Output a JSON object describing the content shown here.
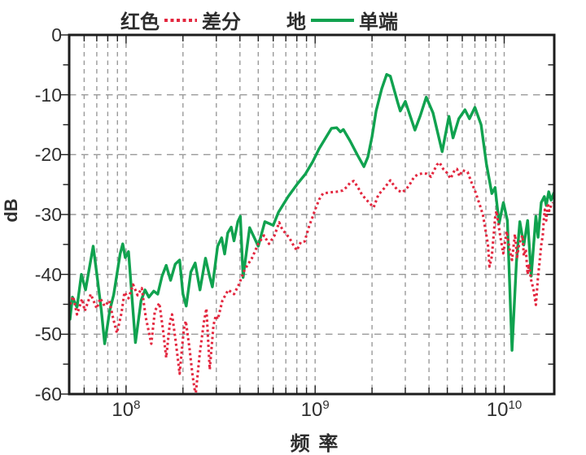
{
  "chart_data": {
    "type": "line",
    "title": "",
    "xlabel": "频 率",
    "ylabel": "dB",
    "x_scale": "log",
    "x_range_hz": [
      50000000.0,
      18400000000.0
    ],
    "ylim": [
      -60,
      0
    ],
    "y_ticks": [
      0,
      -10,
      -20,
      -30,
      -40,
      -50,
      -60
    ],
    "y_minor_tick_step_db": 5,
    "x_major_ticks_hz": [
      100000000.0,
      1000000000.0,
      10000000000.0
    ],
    "x_tick_labels": [
      {
        "base": "10",
        "exp": "8"
      },
      {
        "base": "10",
        "exp": "9"
      },
      {
        "base": "10",
        "exp": "10"
      }
    ],
    "grid": "dashed gray grid, horizontal every 10 dB, vertical at log-decade minors",
    "legend_position": "top-center",
    "legend": [
      {
        "prefix": "红色",
        "name": "差分",
        "style": "dotted",
        "color": "#E3273F"
      },
      {
        "prefix": "地",
        "name": "单端",
        "style": "solid",
        "color": "#10A24F"
      }
    ],
    "colors": {
      "grid": "#9a9a9a",
      "axis": "#1c1c1c",
      "text": "#2d2d2d",
      "red_series": "#E3273F",
      "green_series": "#10A24F"
    },
    "series": [
      {
        "id": "single-ended",
        "name": "单端",
        "style": "solid",
        "color": "#10A24F",
        "points_hz_db": [
          [
            50500000.0,
            -47.5
          ],
          [
            52000000.0,
            -43.8
          ],
          [
            55000000.0,
            -45.5
          ],
          [
            58000000.0,
            -40.0
          ],
          [
            61000000.0,
            -42.6
          ],
          [
            67000000.0,
            -35.3
          ],
          [
            70000000.0,
            -39.9
          ],
          [
            74000000.0,
            -46.0
          ],
          [
            77000000.0,
            -51.6
          ],
          [
            82000000.0,
            -46.0
          ],
          [
            86000000.0,
            -43.4
          ],
          [
            93000000.0,
            -36.6
          ],
          [
            96000000.0,
            -34.9
          ],
          [
            99000000.0,
            -37.2
          ],
          [
            103000000.0,
            -36.2
          ],
          [
            107000000.0,
            -43.0
          ],
          [
            112000000.0,
            -51.4
          ],
          [
            120000000.0,
            -44.4
          ],
          [
            126000000.0,
            -42.6
          ],
          [
            132000000.0,
            -43.8
          ],
          [
            140000000.0,
            -42.8
          ],
          [
            147000000.0,
            -43.3
          ],
          [
            155000000.0,
            -40.3
          ],
          [
            163000000.0,
            -38.5
          ],
          [
            172000000.0,
            -41.0
          ],
          [
            182000000.0,
            -38.3
          ],
          [
            192000000.0,
            -37.6
          ],
          [
            200000000.0,
            -43.3
          ],
          [
            208000000.0,
            -45.3
          ],
          [
            220000000.0,
            -39.6
          ],
          [
            232000000.0,
            -38.1
          ],
          [
            246000000.0,
            -42.6
          ],
          [
            263000000.0,
            -37.3
          ],
          [
            276000000.0,
            -40.2
          ],
          [
            286000000.0,
            -42.1
          ],
          [
            305000000.0,
            -35.3
          ],
          [
            320000000.0,
            -33.9
          ],
          [
            332000000.0,
            -36.6
          ],
          [
            345000000.0,
            -33.1
          ],
          [
            360000000.0,
            -32.1
          ],
          [
            372000000.0,
            -34.4
          ],
          [
            390000000.0,
            -31.2
          ],
          [
            402000000.0,
            -30.3
          ],
          [
            416000000.0,
            -40.5
          ],
          [
            450000000.0,
            -32.2
          ],
          [
            500000000.0,
            -35.3
          ],
          [
            542000000.0,
            -31.2
          ],
          [
            600000000.0,
            -31.8
          ],
          [
            640000000.0,
            -29.6
          ],
          [
            720000000.0,
            -27.0
          ],
          [
            800000000.0,
            -25.0
          ],
          [
            890000000.0,
            -23.2
          ],
          [
            970000000.0,
            -21.2
          ],
          [
            1050000000.0,
            -19.0
          ],
          [
            1220000000.0,
            -15.6
          ],
          [
            1300000000.0,
            -15.5
          ],
          [
            1360000000.0,
            -16.2
          ],
          [
            1410000000.0,
            -15.8
          ],
          [
            1530000000.0,
            -17.7
          ],
          [
            1670000000.0,
            -20.0
          ],
          [
            1810000000.0,
            -22.0
          ],
          [
            1900000000.0,
            -20.4
          ],
          [
            2000000000.0,
            -17.0
          ],
          [
            2100000000.0,
            -12.7
          ],
          [
            2250000000.0,
            -9.0
          ],
          [
            2390000000.0,
            -6.6
          ],
          [
            2500000000.0,
            -6.9
          ],
          [
            2740000000.0,
            -11.4
          ],
          [
            2820000000.0,
            -12.7
          ],
          [
            3000000000.0,
            -11.1
          ],
          [
            3370000000.0,
            -15.9
          ],
          [
            3600000000.0,
            -13.5
          ],
          [
            3870000000.0,
            -10.4
          ],
          [
            4200000000.0,
            -13.0
          ],
          [
            4700000000.0,
            -19.5
          ],
          [
            5100000000.0,
            -13.6
          ],
          [
            5360000000.0,
            -17.2
          ],
          [
            5750000000.0,
            -14.0
          ],
          [
            6200000000.0,
            -12.5
          ],
          [
            6550000000.0,
            -14.0
          ],
          [
            7000000000.0,
            -12.1
          ],
          [
            7550000000.0,
            -15.0
          ],
          [
            8050000000.0,
            -21.5
          ],
          [
            8600000000.0,
            -26.5
          ],
          [
            8950000000.0,
            -25.5
          ],
          [
            9400000000.0,
            -31.5
          ],
          [
            9900000000.0,
            -28.0
          ],
          [
            10400000000.0,
            -31.0
          ],
          [
            11000000000.0,
            -52.7
          ],
          [
            11600000000.0,
            -38.0
          ],
          [
            12100000000.0,
            -31.2
          ],
          [
            12700000000.0,
            -35.1
          ],
          [
            13300000000.0,
            -31.0
          ],
          [
            13900000000.0,
            -40.3
          ],
          [
            14700000000.0,
            -30.3
          ],
          [
            15100000000.0,
            -33.8
          ],
          [
            15700000000.0,
            -28.0
          ],
          [
            16300000000.0,
            -27.0
          ],
          [
            16700000000.0,
            -28.5
          ],
          [
            17200000000.0,
            -26.2
          ],
          [
            17700000000.0,
            -27.6
          ],
          [
            18300000000.0,
            -26.4
          ]
        ]
      },
      {
        "id": "differential",
        "name": "差分",
        "style": "dotted",
        "color": "#E3273F",
        "points_hz_db": [
          [
            50500000.0,
            -45.0
          ],
          [
            52500000.0,
            -43.7
          ],
          [
            55000000.0,
            -46.7
          ],
          [
            58500000.0,
            -44.1
          ],
          [
            60500000.0,
            -46.1
          ],
          [
            65000000.0,
            -43.3
          ],
          [
            70000000.0,
            -45.7
          ],
          [
            73000000.0,
            -44.0
          ],
          [
            77000000.0,
            -45.3
          ],
          [
            81500000.0,
            -44.4
          ],
          [
            85500000.0,
            -47.4
          ],
          [
            89500000.0,
            -49.8
          ],
          [
            94500000.0,
            -46.5
          ],
          [
            98000000.0,
            -43.0
          ],
          [
            103000000.0,
            -44.0
          ],
          [
            109000000.0,
            -41.7
          ],
          [
            115000000.0,
            -43.5
          ],
          [
            121000000.0,
            -42.3
          ],
          [
            127000000.0,
            -47.1
          ],
          [
            136000000.0,
            -51.6
          ],
          [
            142000000.0,
            -46.1
          ],
          [
            150000000.0,
            -44.8
          ],
          [
            157000000.0,
            -49.4
          ],
          [
            163000000.0,
            -53.9
          ],
          [
            171000000.0,
            -47.8
          ],
          [
            175000000.0,
            -46.7
          ],
          [
            183000000.0,
            -51.2
          ],
          [
            192000000.0,
            -56.6
          ],
          [
            202000000.0,
            -49.1
          ],
          [
            207000000.0,
            -47.8
          ],
          [
            216000000.0,
            -52.1
          ],
          [
            225000000.0,
            -57.0
          ],
          [
            233000000.0,
            -60.2
          ],
          [
            245000000.0,
            -53.4
          ],
          [
            258000000.0,
            -48.0
          ],
          [
            266000000.0,
            -45.7
          ],
          [
            277000000.0,
            -55.9
          ],
          [
            290000000.0,
            -48.5
          ],
          [
            298000000.0,
            -46.9
          ],
          [
            306000000.0,
            -47.5
          ],
          [
            323000000.0,
            -44.4
          ],
          [
            347000000.0,
            -42.6
          ],
          [
            372000000.0,
            -43.3
          ],
          [
            395000000.0,
            -41.7
          ],
          [
            424000000.0,
            -39.2
          ],
          [
            463000000.0,
            -37.3
          ],
          [
            500000000.0,
            -34.9
          ],
          [
            536000000.0,
            -33.5
          ],
          [
            570000000.0,
            -34.9
          ],
          [
            610000000.0,
            -33.5
          ],
          [
            645000000.0,
            -31.3
          ],
          [
            670000000.0,
            -32.5
          ],
          [
            730000000.0,
            -33.9
          ],
          [
            770000000.0,
            -35.2
          ],
          [
            800000000.0,
            -36.0
          ],
          [
            840000000.0,
            -34.6
          ],
          [
            880000000.0,
            -34.5
          ],
          [
            930000000.0,
            -31.9
          ],
          [
            970000000.0,
            -30.4
          ],
          [
            1000000000.0,
            -29.2
          ],
          [
            1050000000.0,
            -27.5
          ],
          [
            1100000000.0,
            -26.5
          ],
          [
            1200000000.0,
            -26.3
          ],
          [
            1300000000.0,
            -26.2
          ],
          [
            1400000000.0,
            -26.0
          ],
          [
            1470000000.0,
            -25.4
          ],
          [
            1530000000.0,
            -24.7
          ],
          [
            1600000000.0,
            -24.4
          ],
          [
            1680000000.0,
            -25.4
          ],
          [
            1770000000.0,
            -26.7
          ],
          [
            1900000000.0,
            -27.8
          ],
          [
            2040000000.0,
            -28.8
          ],
          [
            2160000000.0,
            -26.7
          ],
          [
            2320000000.0,
            -25.6
          ],
          [
            2500000000.0,
            -24.3
          ],
          [
            2630000000.0,
            -25.3
          ],
          [
            2740000000.0,
            -26.0
          ],
          [
            2900000000.0,
            -26.3
          ],
          [
            3120000000.0,
            -25.3
          ],
          [
            3340000000.0,
            -23.7
          ],
          [
            3500000000.0,
            -23.3
          ],
          [
            3720000000.0,
            -23.1
          ],
          [
            3900000000.0,
            -23.2
          ],
          [
            4100000000.0,
            -23.7
          ],
          [
            4400000000.0,
            -21.7
          ],
          [
            4550000000.0,
            -21.3
          ],
          [
            4760000000.0,
            -22.4
          ],
          [
            5000000000.0,
            -23.1
          ],
          [
            5200000000.0,
            -24.0
          ],
          [
            5470000000.0,
            -22.6
          ],
          [
            5630000000.0,
            -22.4
          ],
          [
            5800000000.0,
            -23.6
          ],
          [
            6000000000.0,
            -22.6
          ],
          [
            6400000000.0,
            -22.9
          ],
          [
            6730000000.0,
            -24.7
          ],
          [
            7000000000.0,
            -26.0
          ],
          [
            7430000000.0,
            -28.4
          ],
          [
            7720000000.0,
            -30.1
          ],
          [
            8200000000.0,
            -35.0
          ],
          [
            8360000000.0,
            -38.7
          ],
          [
            8600000000.0,
            -37.0
          ],
          [
            8960000000.0,
            -30.5
          ],
          [
            9100000000.0,
            -29.4
          ],
          [
            9500000000.0,
            -33.3
          ],
          [
            9880000000.0,
            -36.5
          ],
          [
            10300000000.0,
            -32.8
          ],
          [
            10700000000.0,
            -36.0
          ],
          [
            11000000000.0,
            -37.6
          ],
          [
            11400000000.0,
            -33.3
          ],
          [
            11700000000.0,
            -37.1
          ],
          [
            12000000000.0,
            -34.9
          ],
          [
            12500000000.0,
            -33.5
          ],
          [
            12700000000.0,
            -36.9
          ],
          [
            13000000000.0,
            -35.8
          ],
          [
            13300000000.0,
            -40.0
          ],
          [
            13500000000.0,
            -38.3
          ],
          [
            13900000000.0,
            -41.0
          ],
          [
            14300000000.0,
            -42.6
          ],
          [
            14700000000.0,
            -45.1
          ],
          [
            15100000000.0,
            -40.3
          ],
          [
            15400000000.0,
            -37.9
          ],
          [
            15700000000.0,
            -35.1
          ],
          [
            16000000000.0,
            -33.5
          ],
          [
            16200000000.0,
            -30.8
          ],
          [
            16400000000.0,
            -29.2
          ],
          [
            16700000000.0,
            -31.0
          ],
          [
            17000000000.0,
            -28.1
          ],
          [
            17300000000.0,
            -29.4
          ],
          [
            17700000000.0,
            -28.5
          ],
          [
            18100000000.0,
            -28.0
          ]
        ]
      }
    ]
  }
}
